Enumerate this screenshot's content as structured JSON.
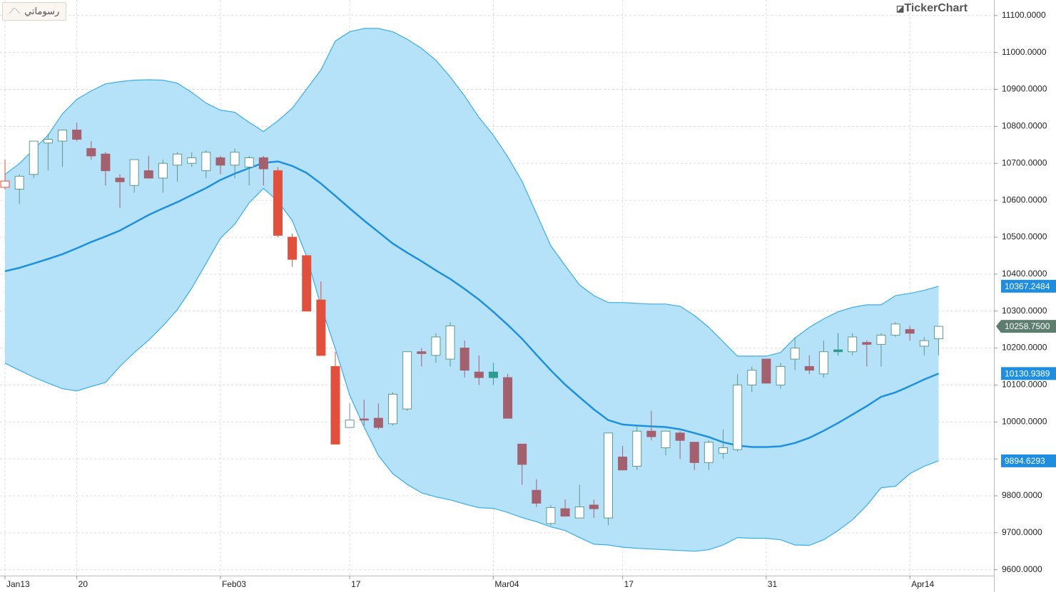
{
  "brand": "TickerChart",
  "button": "رسوماتي",
  "chart_data": {
    "type": "candlestick",
    "categories": [
      "Jan13",
      null,
      null,
      null,
      null,
      "20",
      null,
      null,
      null,
      null,
      null,
      null,
      null,
      null,
      null,
      "Feb03",
      null,
      null,
      null,
      null,
      null,
      null,
      null,
      null,
      "17",
      null,
      null,
      null,
      null,
      null,
      null,
      null,
      null,
      null,
      "Mar04",
      null,
      null,
      null,
      null,
      null,
      null,
      null,
      null,
      "17",
      null,
      null,
      null,
      null,
      null,
      null,
      null,
      null,
      null,
      "31",
      null,
      null,
      null,
      null,
      null,
      null,
      null,
      null,
      null,
      "Apr14",
      null,
      null
    ],
    "up_color": "#5f9a8c",
    "down_color": "#a3606f",
    "candles": [
      {
        "open": 10635,
        "high": 10710,
        "low": 10630,
        "close": 10652,
        "color": "#e0503c"
      },
      {
        "open": 10630,
        "high": 10670,
        "low": 10590,
        "close": 10665
      },
      {
        "open": 10670,
        "high": 10760,
        "low": 10660,
        "close": 10760
      },
      {
        "open": 10755,
        "high": 10780,
        "low": 10680,
        "close": 10765
      },
      {
        "open": 10760,
        "high": 10790,
        "low": 10690,
        "close": 10790
      },
      {
        "open": 10790,
        "high": 10810,
        "low": 10760,
        "close": 10765
      },
      {
        "open": 10740,
        "high": 10760,
        "low": 10710,
        "close": 10720
      },
      {
        "open": 10725,
        "high": 10730,
        "low": 10640,
        "close": 10680
      },
      {
        "open": 10660,
        "high": 10670,
        "low": 10580,
        "close": 10650
      },
      {
        "open": 10640,
        "high": 10710,
        "low": 10620,
        "close": 10710
      },
      {
        "open": 10680,
        "high": 10720,
        "low": 10660,
        "close": 10660
      },
      {
        "open": 10660,
        "high": 10710,
        "low": 10620,
        "close": 10700
      },
      {
        "open": 10695,
        "high": 10730,
        "low": 10650,
        "close": 10725
      },
      {
        "open": 10700,
        "high": 10730,
        "low": 10690,
        "close": 10715
      },
      {
        "open": 10680,
        "high": 10735,
        "low": 10660,
        "close": 10730
      },
      {
        "open": 10715,
        "high": 10720,
        "low": 10670,
        "close": 10695
      },
      {
        "open": 10695,
        "high": 10740,
        "low": 10660,
        "close": 10730
      },
      {
        "open": 10690,
        "high": 10720,
        "low": 10640,
        "close": 10715
      },
      {
        "open": 10715,
        "high": 10720,
        "low": 10640,
        "close": 10685
      },
      {
        "open": 10680,
        "high": 10690,
        "low": 10500,
        "close": 10505,
        "color": "#e0503c"
      },
      {
        "open": 10500,
        "high": 10510,
        "low": 10420,
        "close": 10440,
        "color": "#e0503c"
      },
      {
        "open": 10450,
        "high": 10450,
        "low": 10300,
        "close": 10300,
        "color": "#e0503c"
      },
      {
        "open": 10330,
        "high": 10380,
        "low": 10180,
        "close": 10180,
        "color": "#e0503c"
      },
      {
        "open": 10150,
        "high": 10190,
        "low": 9940,
        "close": 9940,
        "color": "#e0503c"
      },
      {
        "open": 9985,
        "high": 10050,
        "low": 9985,
        "close": 10005
      },
      {
        "open": 10008,
        "high": 10060,
        "low": 9990,
        "close": 10005
      },
      {
        "open": 10010,
        "high": 10050,
        "low": 9980,
        "close": 9985
      },
      {
        "open": 9995,
        "high": 10080,
        "low": 9990,
        "close": 10075
      },
      {
        "open": 10035,
        "high": 10190,
        "low": 10030,
        "close": 10190
      },
      {
        "open": 10190,
        "high": 10200,
        "low": 10150,
        "close": 10185
      },
      {
        "open": 10180,
        "high": 10240,
        "low": 10160,
        "close": 10230
      },
      {
        "open": 10170,
        "high": 10270,
        "low": 10150,
        "close": 10260
      },
      {
        "open": 10200,
        "high": 10220,
        "low": 10120,
        "close": 10140
      },
      {
        "open": 10135,
        "high": 10180,
        "low": 10100,
        "close": 10120
      },
      {
        "open": 10120,
        "high": 10160,
        "low": 10100,
        "close": 10135,
        "color": "#2e9b8f"
      },
      {
        "open": 10120,
        "high": 10130,
        "low": 10010,
        "close": 10010
      },
      {
        "open": 9940,
        "high": 9940,
        "low": 9830,
        "close": 9885
      },
      {
        "open": 9815,
        "high": 9845,
        "low": 9770,
        "close": 9780
      },
      {
        "open": 9725,
        "high": 9775,
        "low": 9720,
        "close": 9768
      },
      {
        "open": 9765,
        "high": 9790,
        "low": 9745,
        "close": 9745
      },
      {
        "open": 9740,
        "high": 9830,
        "low": 9740,
        "close": 9770
      },
      {
        "open": 9775,
        "high": 9790,
        "low": 9740,
        "close": 9765
      },
      {
        "open": 9740,
        "high": 9970,
        "low": 9720,
        "close": 9970
      },
      {
        "open": 9905,
        "high": 9935,
        "low": 9870,
        "close": 9870
      },
      {
        "open": 9880,
        "high": 9990,
        "low": 9870,
        "close": 9975
      },
      {
        "open": 9975,
        "high": 10030,
        "low": 9950,
        "close": 9960
      },
      {
        "open": 9930,
        "high": 9975,
        "low": 9910,
        "close": 9975
      },
      {
        "open": 9970,
        "high": 9975,
        "low": 9900,
        "close": 9950
      },
      {
        "open": 9945,
        "high": 9945,
        "low": 9870,
        "close": 9890
      },
      {
        "open": 9890,
        "high": 9950,
        "low": 9870,
        "close": 9945
      },
      {
        "open": 9915,
        "high": 9980,
        "low": 9900,
        "close": 9930
      },
      {
        "open": 9925,
        "high": 10130,
        "low": 9920,
        "close": 10100
      },
      {
        "open": 10100,
        "high": 10150,
        "low": 10080,
        "close": 10140
      },
      {
        "open": 10170,
        "high": 10170,
        "low": 10105,
        "close": 10105
      },
      {
        "open": 10100,
        "high": 10160,
        "low": 10090,
        "close": 10150
      },
      {
        "open": 10170,
        "high": 10230,
        "low": 10140,
        "close": 10200
      },
      {
        "open": 10150,
        "high": 10180,
        "low": 10130,
        "close": 10140
      },
      {
        "open": 10130,
        "high": 10220,
        "low": 10120,
        "close": 10190
      },
      {
        "open": 10190,
        "high": 10240,
        "low": 10180,
        "close": 10195,
        "color": "#2e9b8f"
      },
      {
        "open": 10190,
        "high": 10240,
        "low": 10180,
        "close": 10230
      },
      {
        "open": 10215,
        "high": 10220,
        "low": 10150,
        "close": 10210
      },
      {
        "open": 10210,
        "high": 10240,
        "low": 10150,
        "close": 10235
      },
      {
        "open": 10235,
        "high": 10270,
        "low": 10230,
        "close": 10265
      },
      {
        "open": 10250,
        "high": 10260,
        "low": 10220,
        "close": 10240
      },
      {
        "open": 10205,
        "high": 10230,
        "low": 10180,
        "close": 10220
      },
      {
        "open": 10225,
        "high": 10260,
        "low": 10180,
        "close": 10258.75
      }
    ],
    "bands": {
      "fill": "#b5e1f9",
      "edge_color": "#3aaeea",
      "mid_color": "#1e90e0",
      "upper": [
        10670,
        10699,
        10738,
        10776,
        10834,
        10873,
        10896,
        10915,
        10921,
        10925,
        10926,
        10925,
        10917,
        10892,
        10863,
        10844,
        10838,
        10811,
        10786,
        10815,
        10849,
        10901,
        10953,
        11031,
        11056,
        11065,
        11065,
        11056,
        11036,
        11011,
        10979,
        10934,
        10882,
        10824,
        10776,
        10718,
        10651,
        10564,
        10477,
        10423,
        10371,
        10342,
        10323,
        10323,
        10321,
        10319,
        10319,
        10313,
        10288,
        10256,
        10217,
        10178,
        10178,
        10178,
        10188,
        10227,
        10256,
        10279,
        10298,
        10310,
        10317,
        10317,
        10342,
        10348,
        10356,
        10367.2484
      ],
      "middle": [
        10408,
        10417,
        10429,
        10441,
        10454,
        10470,
        10487,
        10502,
        10518,
        10539,
        10560,
        10578,
        10595,
        10614,
        10633,
        10655,
        10672,
        10687,
        10701,
        10705,
        10693,
        10674,
        10645,
        10612,
        10578,
        10545,
        10514,
        10483,
        10458,
        10435,
        10410,
        10387,
        10360,
        10331,
        10298,
        10263,
        10225,
        10182,
        10140,
        10101,
        10067,
        10034,
        10005,
        9993,
        9990,
        9988,
        9986,
        9980,
        9970,
        9959,
        9945,
        9936,
        9932,
        9932,
        9934,
        9943,
        9957,
        9976,
        9997,
        10020,
        10043,
        10068,
        10080,
        10097,
        10115,
        10130.9389
      ],
      "lower": [
        10159,
        10140,
        10121,
        10105,
        10090,
        10084,
        10096,
        10107,
        10150,
        10188,
        10221,
        10260,
        10304,
        10362,
        10429,
        10497,
        10535,
        10593,
        10632,
        10597,
        10545,
        10448,
        10313,
        10198,
        10072,
        9986,
        9909,
        9860,
        9831,
        9808,
        9797,
        9789,
        9778,
        9768,
        9766,
        9755,
        9741,
        9730,
        9716,
        9706,
        9687,
        9669,
        9667,
        9661,
        9658,
        9656,
        9654,
        9652,
        9650,
        9654,
        9667,
        9687,
        9685,
        9685,
        9681,
        9667,
        9666,
        9681,
        9706,
        9735,
        9774,
        9822,
        9826,
        9860,
        9880,
        9894.6293
      ]
    },
    "price_tags": [
      {
        "value": 10367.2484,
        "label": "10367.2484",
        "color": "#1e8fe0"
      },
      {
        "value": 10258.75,
        "label": "10258.7500",
        "color": "#5d7d6e"
      },
      {
        "value": 10130.9389,
        "label": "10130.9389",
        "color": "#1e8fe0"
      },
      {
        "value": 9894.6293,
        "label": "9894.6293",
        "color": "#1e8fe0"
      }
    ],
    "ylim": [
      9584,
      11142
    ],
    "yticks": [
      {
        "value": 9600,
        "label": "9600.0000"
      },
      {
        "value": 9700,
        "label": "9700.0000"
      },
      {
        "value": 9800,
        "label": "9800.0000"
      },
      {
        "value": 9900,
        "label": "9900.0000"
      },
      {
        "value": 10000,
        "label": "10000.0000"
      },
      {
        "value": 10100,
        "label": "10100.0000"
      },
      {
        "value": 10200,
        "label": "10200.0000"
      },
      {
        "value": 10300,
        "label": "10300.0000"
      },
      {
        "value": 10400,
        "label": "10400.0000"
      },
      {
        "value": 10500,
        "label": "10500.0000"
      },
      {
        "value": 10600,
        "label": "10600.0000"
      },
      {
        "value": 10700,
        "label": "10700.0000"
      },
      {
        "value": 10800,
        "label": "10800.0000"
      },
      {
        "value": 10900,
        "label": "10900.0000"
      },
      {
        "value": 11000,
        "label": "11000.0000"
      },
      {
        "value": 11100,
        "label": "11100.0000"
      }
    ],
    "grid": true
  }
}
